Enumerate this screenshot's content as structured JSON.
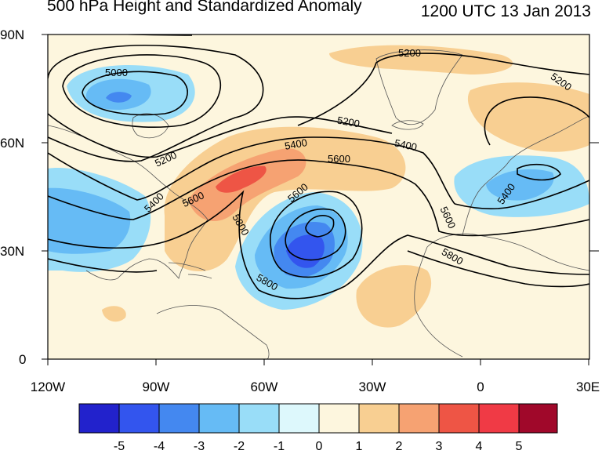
{
  "header": {
    "title": "500 hPa Height and Standardized Anomaly",
    "datetime": "1200 UTC 13 Jan 2013"
  },
  "map": {
    "lat_labels": [
      "90N",
      "60N",
      "30N",
      "0"
    ],
    "lon_labels": [
      "120W",
      "90W",
      "60W",
      "30W",
      "0",
      "30E"
    ],
    "contour_labels": [
      "5000",
      "5200",
      "5200",
      "5200",
      "5200",
      "5400",
      "5400",
      "5400",
      "5400",
      "5600",
      "5600",
      "5600",
      "5600",
      "5800",
      "5800",
      "5800"
    ]
  },
  "colorbar": {
    "labels": [
      "-5",
      "-4",
      "-3",
      "-2",
      "-1",
      "0",
      "1",
      "2",
      "3",
      "4",
      "5"
    ],
    "colors": [
      "#2222cc",
      "#3355ee",
      "#4488f0",
      "#66bbf5",
      "#99ddf8",
      "#ddf8fc",
      "#fdf6de",
      "#f8cf92",
      "#f6a272",
      "#ee5545",
      "#f03a45",
      "#a0082a"
    ]
  }
}
